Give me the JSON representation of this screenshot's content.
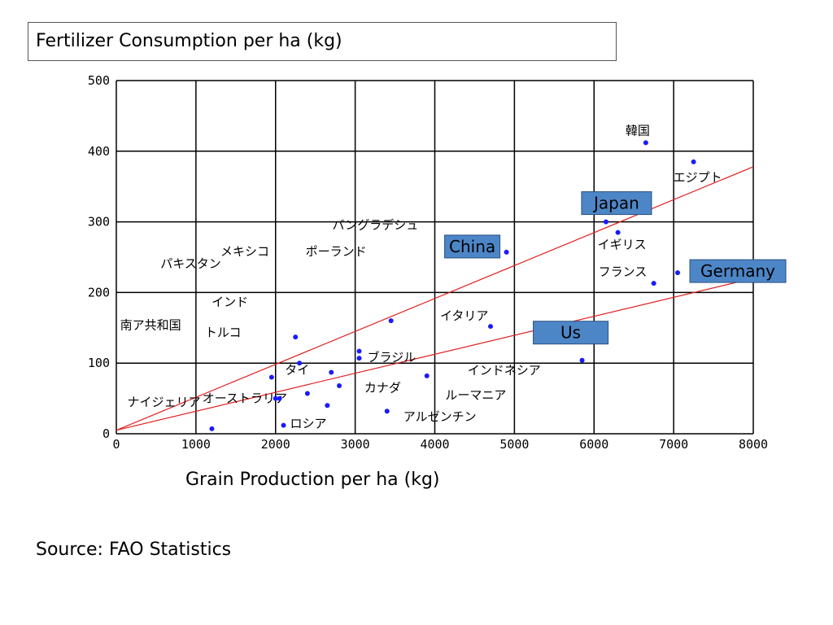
{
  "chart_data": {
    "type": "scatter",
    "title": "Fertilizer Consumption per ha (kg)",
    "xlabel": "Grain Production per ha (kg)",
    "ylabel": "",
    "xlim": [
      0,
      8000
    ],
    "ylim": [
      0,
      500
    ],
    "xticks": [
      0,
      1000,
      2000,
      3000,
      4000,
      5000,
      6000,
      7000,
      8000
    ],
    "yticks": [
      0,
      100,
      200,
      300,
      400,
      500
    ],
    "grid": true,
    "points": [
      {
        "label": "韓国",
        "x": 6650,
        "y": 412
      },
      {
        "label": "エジプト",
        "x": 7250,
        "y": 385
      },
      {
        "label": "Japan",
        "x": 6150,
        "y": 300
      },
      {
        "label": "イギリス",
        "x": 6300,
        "y": 285
      },
      {
        "label": "フランス",
        "x": 6750,
        "y": 213
      },
      {
        "label": "Germany",
        "x": 7050,
        "y": 228
      },
      {
        "label": "China",
        "x": 4900,
        "y": 257
      },
      {
        "label": "イタリア",
        "x": 4700,
        "y": 152
      },
      {
        "label": "Us",
        "x": 5850,
        "y": 104
      },
      {
        "label": "インドネシア",
        "x": 3900,
        "y": 82
      },
      {
        "label": "ルーマニア",
        "x": 2650,
        "y": 40
      },
      {
        "label": "アルゼンチン",
        "x": 3400,
        "y": 32
      },
      {
        "label": "ロシア",
        "x": 2100,
        "y": 12
      },
      {
        "label": "ナイジェリア",
        "x": 1200,
        "y": 7
      },
      {
        "label": "オーストラリア",
        "x": 2000,
        "y": 50
      },
      {
        "label": "カナダ",
        "x": 2400,
        "y": 57
      },
      {
        "label": "タイ",
        "x": 2700,
        "y": 87
      },
      {
        "label": "トルコ",
        "x": 1950,
        "y": 80
      },
      {
        "label": "南ア共和国",
        "x": 2050,
        "y": 50
      },
      {
        "label": "インド",
        "x": 2300,
        "y": 100
      },
      {
        "label": "パキスタン",
        "x": 2250,
        "y": 137
      },
      {
        "label": "メキシコ",
        "x": 2800,
        "y": 68
      },
      {
        "label": "ブラジル",
        "x": 3050,
        "y": 107
      },
      {
        "label": "ポーランド",
        "x": 3450,
        "y": 160
      },
      {
        "label": "バングラデシュ",
        "x": 3050,
        "y": 117
      }
    ],
    "trendlines": [
      {
        "from": [
          0,
          5
        ],
        "to": [
          8000,
          378
        ]
      },
      {
        "from": [
          0,
          5
        ],
        "to": [
          8000,
          220
        ]
      }
    ]
  },
  "source": "Source: FAO Statistics",
  "colors": {
    "point": "#1a1aff",
    "trend": "#e02020",
    "highlight_fill": "#4d86c7",
    "grid": "#000000"
  }
}
